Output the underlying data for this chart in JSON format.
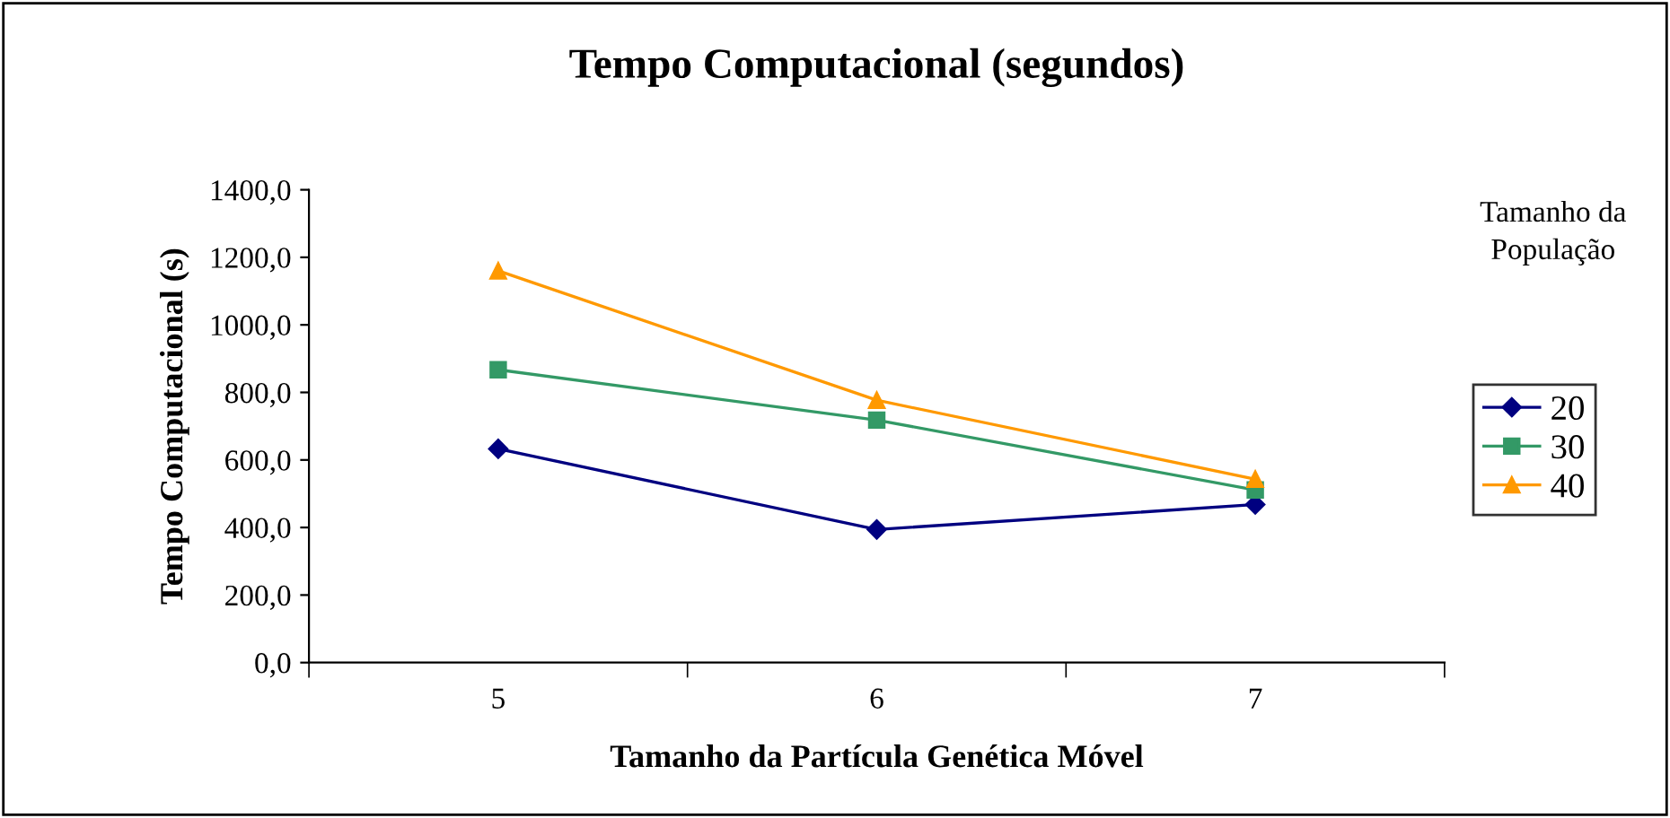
{
  "chart_data": {
    "type": "line",
    "title": "Tempo Computacional (segundos)",
    "xlabel": "Tamanho da Partícula Genética Móvel",
    "ylabel": "Tempo Computacional (s)",
    "legend_title": "Tamanho da\nPopulação",
    "categories": [
      "5",
      "6",
      "7"
    ],
    "series": [
      {
        "name": "20",
        "color": "#000080",
        "marker": "diamond",
        "values": [
          633,
          394,
          468
        ]
      },
      {
        "name": "30",
        "color": "#339966",
        "marker": "square",
        "values": [
          867,
          718,
          511
        ]
      },
      {
        "name": "40",
        "color": "#ff9900",
        "marker": "triangle",
        "values": [
          1160,
          777,
          543
        ]
      }
    ],
    "ylim": [
      0,
      1400
    ],
    "yticks": [
      {
        "value": 0,
        "label": "0,0"
      },
      {
        "value": 200,
        "label": "200,0"
      },
      {
        "value": 400,
        "label": "400,0"
      },
      {
        "value": 600,
        "label": "600,0"
      },
      {
        "value": 800,
        "label": "800,0"
      },
      {
        "value": 1000,
        "label": "1000,0"
      },
      {
        "value": 1200,
        "label": "1200,0"
      },
      {
        "value": 1400,
        "label": "1400,0"
      }
    ],
    "grid": false,
    "legend": "right",
    "line_style": "solid"
  }
}
